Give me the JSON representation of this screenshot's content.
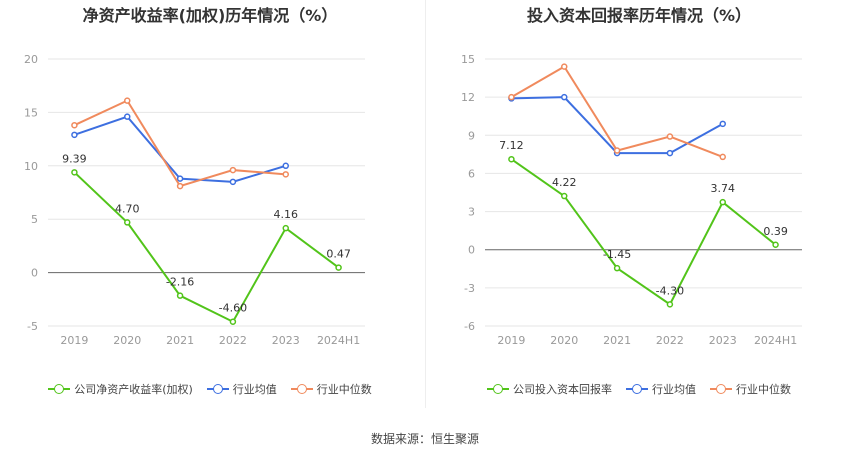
{
  "chart_data": [
    {
      "type": "line",
      "title": "净资产收益率(加权)历年情况（%）",
      "categories": [
        "2019",
        "2020",
        "2021",
        "2022",
        "2023",
        "2024H1"
      ],
      "ylim": [
        -5,
        20
      ],
      "yticks": [
        -5,
        0,
        5,
        10,
        15,
        20
      ],
      "grid": true,
      "legend_position": "bottom",
      "series": [
        {
          "name": "公司净资产收益率(加权)",
          "color": "#52c41a",
          "values": [
            9.39,
            4.7,
            -2.16,
            -4.6,
            4.16,
            0.47
          ],
          "labels": [
            "9.39",
            "4.70",
            "-2.16",
            "-4.60",
            "4.16",
            "0.47"
          ]
        },
        {
          "name": "行业均值",
          "color": "#3d6fe0",
          "values": [
            12.9,
            14.6,
            8.8,
            8.5,
            10.0,
            null
          ]
        },
        {
          "name": "行业中位数",
          "color": "#f08a5d",
          "values": [
            13.8,
            16.1,
            8.1,
            9.6,
            9.2,
            null
          ]
        }
      ]
    },
    {
      "type": "line",
      "title": "投入资本回报率历年情况（%）",
      "categories": [
        "2019",
        "2020",
        "2021",
        "2022",
        "2023",
        "2024H1"
      ],
      "ylim": [
        -6,
        15
      ],
      "yticks": [
        -6,
        -3,
        0,
        3,
        6,
        9,
        12,
        15
      ],
      "grid": true,
      "legend_position": "bottom",
      "series": [
        {
          "name": "公司投入资本回报率",
          "color": "#52c41a",
          "values": [
            7.12,
            4.22,
            -1.45,
            -4.3,
            3.74,
            0.39
          ],
          "labels": [
            "7.12",
            "4.22",
            "-1.45",
            "-4.30",
            "3.74",
            "0.39"
          ]
        },
        {
          "name": "行业均值",
          "color": "#3d6fe0",
          "values": [
            11.9,
            12.0,
            7.6,
            7.6,
            9.9,
            null
          ]
        },
        {
          "name": "行业中位数",
          "color": "#f08a5d",
          "values": [
            12.0,
            14.4,
            7.8,
            8.9,
            7.3,
            null
          ]
        }
      ]
    }
  ],
  "source": "数据来源：恒生聚源"
}
